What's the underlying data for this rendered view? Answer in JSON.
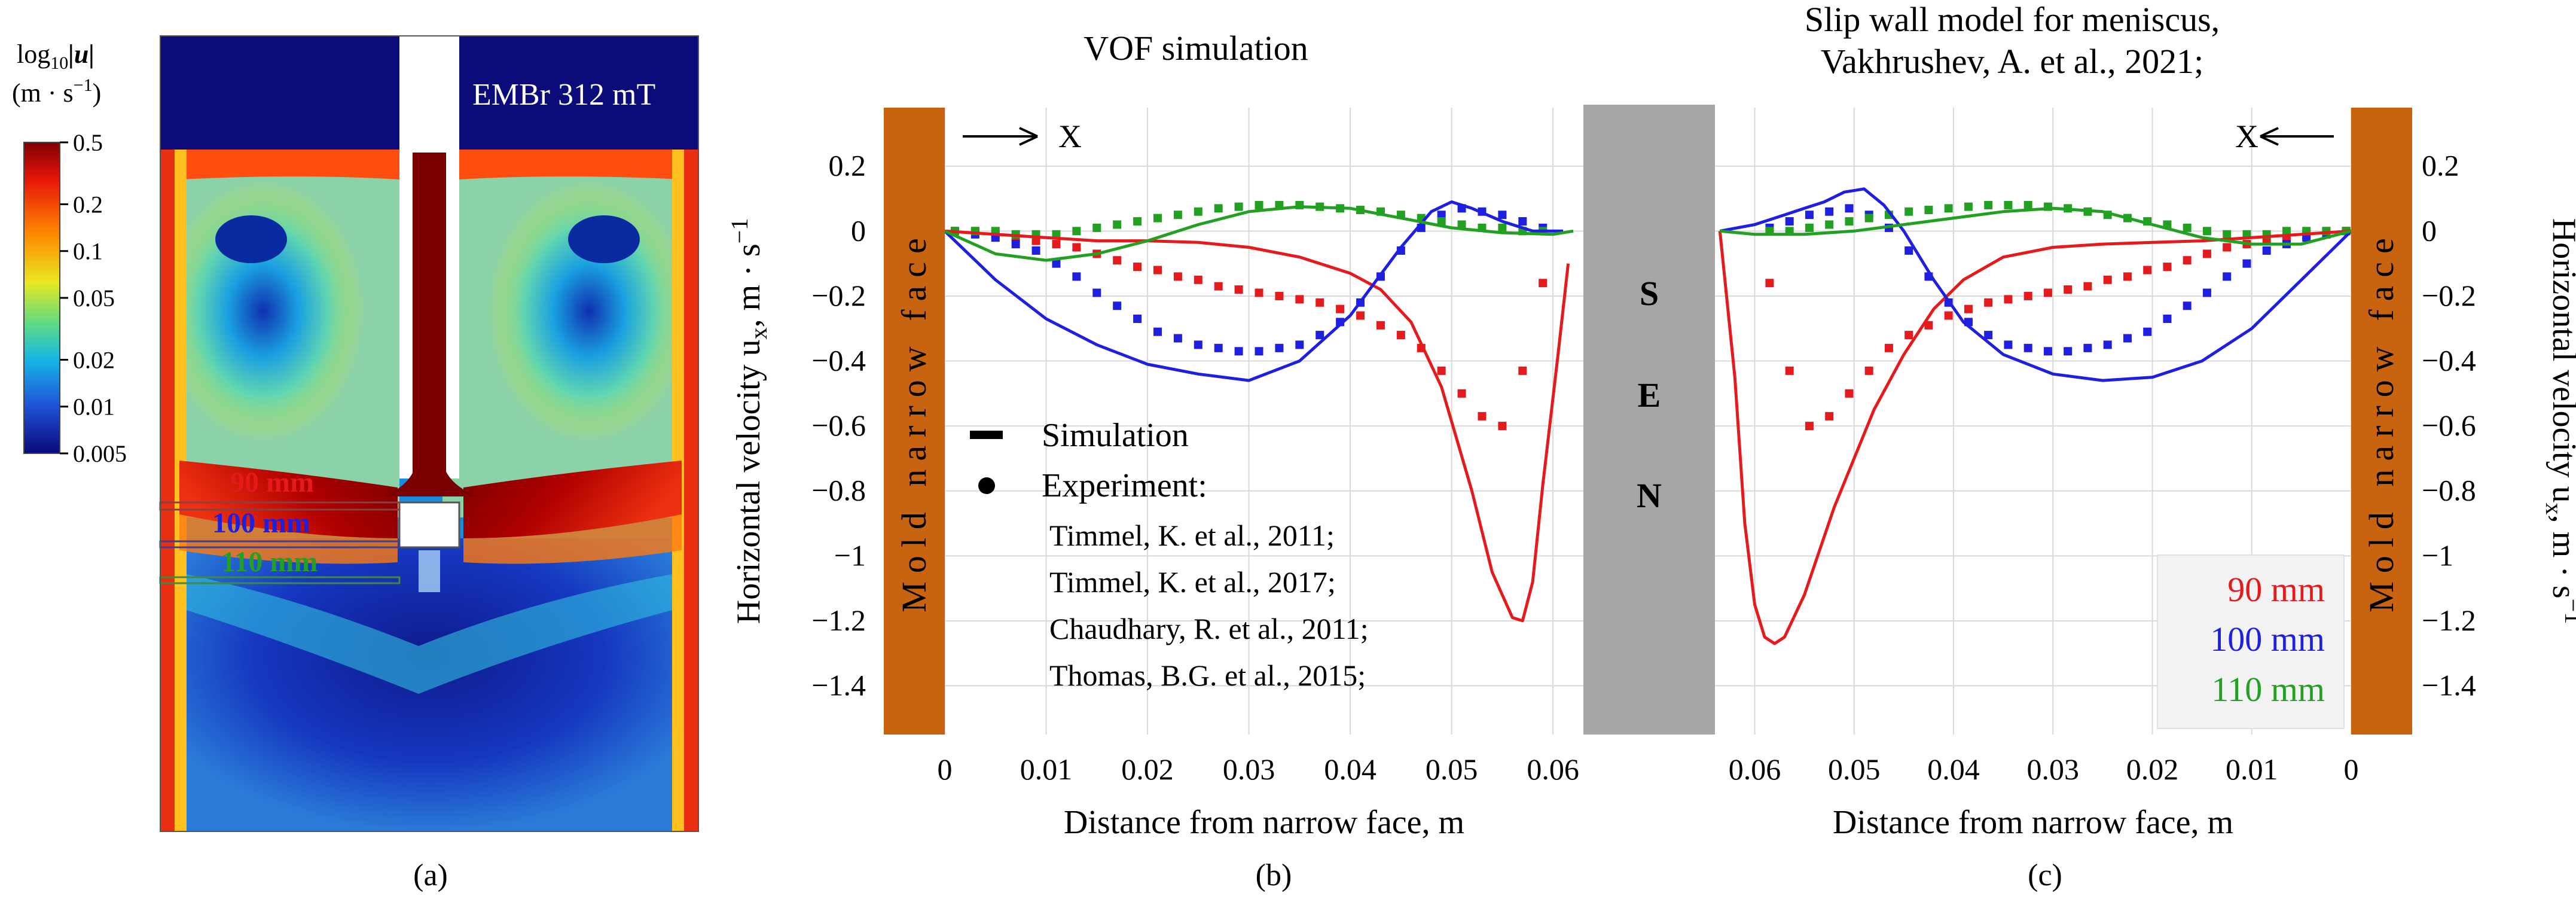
{
  "colors": {
    "red": "#e41a1c",
    "blue": "#1f1fe0",
    "green": "#22a022",
    "mold": "#c86410",
    "sen": "#a6a6a6",
    "grid": "#d9d9d9"
  },
  "panel_a": {
    "caption": "(a)",
    "colorbar_title_line1": "log",
    "colorbar_title_sub": "10",
    "colorbar_title_u": "|u|",
    "colorbar_units": "(m · s",
    "colorbar_units_exp": "−1",
    "colorbar_units_close": ")",
    "colorbar_ticks": [
      "0.5",
      "0.2",
      "0.1",
      "0.05",
      "0.02",
      "0.01",
      "0.005"
    ],
    "field_label": "EMBr 312 mT",
    "line_labels": [
      {
        "text": "90 mm",
        "color_key": "red"
      },
      {
        "text": "100 mm",
        "color_key": "blue"
      },
      {
        "text": "110 mm",
        "color_key": "green"
      }
    ]
  },
  "panel_b": {
    "caption": "(b)",
    "title": "VOF simulation",
    "arrow_label": "X",
    "mold_label": "Mold narrow face",
    "legend": {
      "simulation": "Simulation",
      "experiment": "Experiment:",
      "refs": [
        "Timmel, K. et al., 2011;",
        "Timmel, K. et al., 2017;",
        "Chaudhary, R. et al., 2011;",
        "Thomas, B.G. et al., 2015;"
      ]
    }
  },
  "panel_c": {
    "caption": "(c)",
    "title_line1": "Slip wall model for meniscus,",
    "title_line2": "Vakhrushev, A. et al., 2021;",
    "arrow_label": "X",
    "mold_label": "Mold narrow face",
    "legend": [
      {
        "text": "90 mm",
        "color_key": "red"
      },
      {
        "text": "100 mm",
        "color_key": "blue"
      },
      {
        "text": "110 mm",
        "color_key": "green"
      }
    ]
  },
  "sen_label": [
    "S",
    "E",
    "N"
  ],
  "chart_data": [
    {
      "type": "line",
      "panel": "b",
      "title": "VOF simulation",
      "xlabel": "Distance from narrow face, m",
      "ylabel": "Horizontal velocity u",
      "ylabel_sub": "x",
      "ylabel_units": ", m · s",
      "ylabel_exp": "−1",
      "xlim": [
        0,
        0.063
      ],
      "ylim": [
        -1.55,
        0.38
      ],
      "x_ticks": [
        0,
        0.01,
        0.02,
        0.03,
        0.04,
        0.05,
        0.06
      ],
      "x_tick_labels": [
        "0",
        "0.01",
        "0.02",
        "0.03",
        "0.04",
        "0.05",
        "0.06"
      ],
      "y_ticks": [
        0.2,
        0,
        -0.2,
        -0.4,
        -0.6,
        -0.8,
        -1,
        -1.2,
        -1.4
      ],
      "y_tick_labels": [
        "0.2",
        "0",
        "−0.2",
        "−0.4",
        "−0.6",
        "−0.8",
        "−1",
        "−1.2",
        "−1.4"
      ],
      "grid": true,
      "series": [
        {
          "name": "90 mm simulation",
          "kind": "line",
          "color_key": "red",
          "x": [
            0,
            0.005,
            0.01,
            0.015,
            0.02,
            0.025,
            0.03,
            0.035,
            0.04,
            0.043,
            0.046,
            0.049,
            0.052,
            0.054,
            0.056,
            0.057,
            0.058,
            0.059,
            0.0605,
            0.0615
          ],
          "y": [
            0,
            -0.01,
            -0.02,
            -0.03,
            -0.03,
            -0.035,
            -0.05,
            -0.08,
            -0.13,
            -0.18,
            -0.28,
            -0.48,
            -0.8,
            -1.05,
            -1.19,
            -1.2,
            -1.08,
            -0.78,
            -0.38,
            -0.1
          ]
        },
        {
          "name": "100 mm simulation",
          "kind": "line",
          "color_key": "blue",
          "x": [
            0,
            0.005,
            0.01,
            0.015,
            0.02,
            0.025,
            0.03,
            0.035,
            0.04,
            0.045,
            0.048,
            0.05,
            0.052,
            0.055,
            0.058,
            0.061
          ],
          "y": [
            0,
            -0.15,
            -0.27,
            -0.35,
            -0.41,
            -0.44,
            -0.46,
            -0.4,
            -0.26,
            -0.05,
            0.06,
            0.09,
            0.07,
            0.03,
            0.0,
            0.0
          ]
        },
        {
          "name": "110 mm simulation",
          "kind": "line",
          "color_key": "green",
          "x": [
            0,
            0.005,
            0.01,
            0.015,
            0.02,
            0.025,
            0.03,
            0.035,
            0.04,
            0.045,
            0.05,
            0.055,
            0.06,
            0.062
          ],
          "y": [
            0,
            -0.07,
            -0.09,
            -0.07,
            -0.03,
            0.02,
            0.06,
            0.075,
            0.07,
            0.04,
            0.01,
            -0.005,
            -0.01,
            0
          ]
        },
        {
          "name": "90 mm experiment",
          "kind": "points",
          "color_key": "red",
          "x": [
            0.001,
            0.003,
            0.005,
            0.007,
            0.009,
            0.011,
            0.013,
            0.015,
            0.017,
            0.019,
            0.021,
            0.023,
            0.025,
            0.027,
            0.029,
            0.031,
            0.033,
            0.035,
            0.037,
            0.039,
            0.041,
            0.043,
            0.045,
            0.047,
            0.049,
            0.051,
            0.053,
            0.055,
            0.057,
            0.059
          ],
          "y": [
            0.0,
            0.0,
            -0.01,
            -0.02,
            -0.03,
            -0.04,
            -0.05,
            -0.07,
            -0.09,
            -0.11,
            -0.12,
            -0.14,
            -0.15,
            -0.17,
            -0.18,
            -0.19,
            -0.2,
            -0.21,
            -0.22,
            -0.24,
            -0.26,
            -0.29,
            -0.32,
            -0.36,
            -0.43,
            -0.5,
            -0.57,
            -0.6,
            -0.43,
            -0.16
          ]
        },
        {
          "name": "100 mm experiment",
          "kind": "points",
          "color_key": "blue",
          "x": [
            0.001,
            0.003,
            0.005,
            0.007,
            0.009,
            0.011,
            0.013,
            0.015,
            0.017,
            0.019,
            0.021,
            0.023,
            0.025,
            0.027,
            0.029,
            0.031,
            0.033,
            0.035,
            0.037,
            0.039,
            0.041,
            0.043,
            0.045,
            0.047,
            0.049,
            0.051,
            0.053,
            0.055,
            0.057,
            0.059
          ],
          "y": [
            0.0,
            -0.01,
            -0.02,
            -0.04,
            -0.06,
            -0.1,
            -0.14,
            -0.19,
            -0.23,
            -0.27,
            -0.31,
            -0.33,
            -0.35,
            -0.36,
            -0.37,
            -0.37,
            -0.36,
            -0.35,
            -0.32,
            -0.28,
            -0.22,
            -0.14,
            -0.06,
            0.01,
            0.05,
            0.07,
            0.06,
            0.05,
            0.03,
            0.01
          ]
        },
        {
          "name": "110 mm experiment",
          "kind": "points",
          "color_key": "green",
          "x": [
            0.001,
            0.003,
            0.005,
            0.007,
            0.009,
            0.011,
            0.013,
            0.015,
            0.017,
            0.019,
            0.021,
            0.023,
            0.025,
            0.027,
            0.029,
            0.031,
            0.033,
            0.035,
            0.037,
            0.039,
            0.041,
            0.043,
            0.045,
            0.047,
            0.049,
            0.051,
            0.053,
            0.055,
            0.057,
            0.059
          ],
          "y": [
            0.0,
            0.0,
            0.0,
            -0.01,
            -0.01,
            -0.01,
            0.0,
            0.01,
            0.02,
            0.03,
            0.04,
            0.05,
            0.06,
            0.07,
            0.075,
            0.08,
            0.08,
            0.08,
            0.075,
            0.07,
            0.065,
            0.06,
            0.05,
            0.04,
            0.03,
            0.02,
            0.01,
            0.01,
            0.0,
            0.0
          ]
        }
      ]
    },
    {
      "type": "line",
      "panel": "c",
      "title": "Slip wall model for meniscus, Vakhrushev, A. et al., 2021;",
      "xlabel": "Distance from narrow face, m",
      "ylabel": "Horizontal velocity u",
      "ylabel_sub": "x",
      "ylabel_units": ", m · s",
      "ylabel_exp": "−1",
      "xlim": [
        0.064,
        0
      ],
      "ylim": [
        -1.55,
        0.38
      ],
      "x_ticks": [
        0.06,
        0.05,
        0.04,
        0.03,
        0.02,
        0.01,
        0
      ],
      "x_tick_labels": [
        "0.06",
        "0.05",
        "0.04",
        "0.03",
        "0.02",
        "0.01",
        "0"
      ],
      "y_ticks": [
        0.2,
        0,
        -0.2,
        -0.4,
        -0.6,
        -0.8,
        -1,
        -1.2,
        -1.4
      ],
      "y_tick_labels": [
        "0.2",
        "0",
        "−0.2",
        "−0.4",
        "−0.6",
        "−0.8",
        "−1",
        "−1.2",
        "−1.4"
      ],
      "grid": true,
      "series": [
        {
          "name": "90 mm",
          "kind": "line",
          "color_key": "red",
          "x": [
            0.0635,
            0.062,
            0.061,
            0.06,
            0.059,
            0.058,
            0.057,
            0.055,
            0.052,
            0.048,
            0.045,
            0.042,
            0.039,
            0.035,
            0.03,
            0.025,
            0.02,
            0.015,
            0.01,
            0.005,
            0
          ],
          "y": [
            0,
            -0.45,
            -0.9,
            -1.15,
            -1.25,
            -1.27,
            -1.25,
            -1.12,
            -0.85,
            -0.55,
            -0.38,
            -0.24,
            -0.15,
            -0.08,
            -0.05,
            -0.04,
            -0.035,
            -0.03,
            -0.02,
            -0.01,
            0
          ]
        },
        {
          "name": "100 mm",
          "kind": "line",
          "color_key": "blue",
          "x": [
            0.0635,
            0.06,
            0.057,
            0.055,
            0.053,
            0.051,
            0.049,
            0.047,
            0.045,
            0.042,
            0.039,
            0.035,
            0.03,
            0.025,
            0.02,
            0.015,
            0.01,
            0.005,
            0
          ],
          "y": [
            0,
            0.02,
            0.05,
            0.07,
            0.09,
            0.12,
            0.13,
            0.08,
            0.0,
            -0.15,
            -0.28,
            -0.38,
            -0.44,
            -0.46,
            -0.45,
            -0.4,
            -0.3,
            -0.15,
            0
          ]
        },
        {
          "name": "110 mm",
          "kind": "line",
          "color_key": "green",
          "x": [
            0.0635,
            0.06,
            0.055,
            0.05,
            0.045,
            0.04,
            0.035,
            0.03,
            0.025,
            0.02,
            0.015,
            0.01,
            0.005,
            0
          ],
          "y": [
            0,
            -0.01,
            -0.01,
            0.0,
            0.02,
            0.04,
            0.06,
            0.07,
            0.06,
            0.02,
            -0.02,
            -0.04,
            -0.04,
            0
          ]
        },
        {
          "name": "90 mm experiment",
          "kind": "points",
          "color_key": "red",
          "x": [
            0.0585,
            0.0565,
            0.0545,
            0.0525,
            0.0505,
            0.0485,
            0.0465,
            0.0445,
            0.0425,
            0.0405,
            0.0385,
            0.0365,
            0.0345,
            0.0325,
            0.0305,
            0.0285,
            0.0265,
            0.0245,
            0.0225,
            0.0205,
            0.0185,
            0.0165,
            0.0145,
            0.0125,
            0.0105,
            0.0085,
            0.0065,
            0.0045,
            0.0025,
            0.0005
          ],
          "y": [
            -0.16,
            -0.43,
            -0.6,
            -0.57,
            -0.5,
            -0.43,
            -0.36,
            -0.32,
            -0.29,
            -0.26,
            -0.24,
            -0.22,
            -0.21,
            -0.2,
            -0.19,
            -0.18,
            -0.17,
            -0.15,
            -0.14,
            -0.12,
            -0.11,
            -0.09,
            -0.07,
            -0.05,
            -0.04,
            -0.03,
            -0.02,
            -0.01,
            0.0,
            0.0
          ]
        },
        {
          "name": "100 mm experiment",
          "kind": "points",
          "color_key": "blue",
          "x": [
            0.0585,
            0.0565,
            0.0545,
            0.0525,
            0.0505,
            0.0485,
            0.0465,
            0.0445,
            0.0425,
            0.0405,
            0.0385,
            0.0365,
            0.0345,
            0.0325,
            0.0305,
            0.0285,
            0.0265,
            0.0245,
            0.0225,
            0.0205,
            0.0185,
            0.0165,
            0.0145,
            0.0125,
            0.0105,
            0.0085,
            0.0065,
            0.0045,
            0.0025,
            0.0005
          ],
          "y": [
            0.01,
            0.03,
            0.05,
            0.06,
            0.07,
            0.05,
            0.01,
            -0.06,
            -0.14,
            -0.22,
            -0.28,
            -0.32,
            -0.35,
            -0.36,
            -0.37,
            -0.37,
            -0.36,
            -0.35,
            -0.33,
            -0.31,
            -0.27,
            -0.23,
            -0.19,
            -0.14,
            -0.1,
            -0.06,
            -0.04,
            -0.02,
            -0.01,
            0.0
          ]
        },
        {
          "name": "110 mm experiment",
          "kind": "points",
          "color_key": "green",
          "x": [
            0.0585,
            0.0565,
            0.0545,
            0.0525,
            0.0505,
            0.0485,
            0.0465,
            0.0445,
            0.0425,
            0.0405,
            0.0385,
            0.0365,
            0.0345,
            0.0325,
            0.0305,
            0.0285,
            0.0265,
            0.0245,
            0.0225,
            0.0205,
            0.0185,
            0.0165,
            0.0145,
            0.0125,
            0.0105,
            0.0085,
            0.0065,
            0.0045,
            0.0025,
            0.0005
          ],
          "y": [
            0.0,
            0.0,
            0.01,
            0.02,
            0.03,
            0.04,
            0.05,
            0.06,
            0.065,
            0.07,
            0.075,
            0.08,
            0.08,
            0.08,
            0.075,
            0.07,
            0.06,
            0.05,
            0.04,
            0.03,
            0.02,
            0.01,
            0.0,
            -0.01,
            -0.01,
            -0.01,
            0.0,
            0.0,
            0.0,
            0.0
          ]
        }
      ]
    }
  ]
}
